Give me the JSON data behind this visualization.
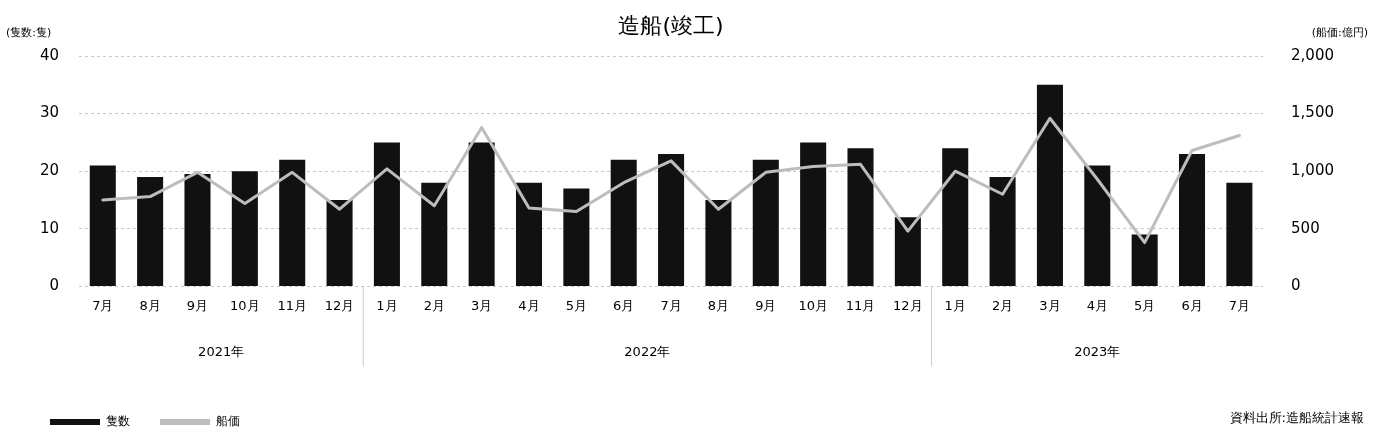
{
  "chart_data": {
    "type": "bar",
    "title": "造船(竣工)",
    "ylabel": "(隻数:隻)",
    "y2label": "(船価:億円)",
    "categories": [
      "7月",
      "8月",
      "9月",
      "10月",
      "11月",
      "12月",
      "1月",
      "2月",
      "3月",
      "4月",
      "5月",
      "6月",
      "7月",
      "8月",
      "9月",
      "10月",
      "11月",
      "12月",
      "1月",
      "2月",
      "3月",
      "4月",
      "5月",
      "6月",
      "7月"
    ],
    "series": [
      {
        "name": "隻数",
        "color": "#111111",
        "values": [
          21,
          19,
          19.5,
          20,
          22,
          15,
          25,
          18,
          25,
          18,
          17,
          22,
          23,
          15,
          22,
          25,
          24,
          12,
          24,
          19,
          35,
          21,
          9,
          23,
          18
        ]
      },
      {
        "name": "船価",
        "type": "line",
        "axis": "y2",
        "color": "#bdbdbd",
        "values": [
          750,
          780,
          990,
          720,
          990,
          670,
          1020,
          700,
          1380,
          680,
          650,
          900,
          1090,
          670,
          990,
          1040,
          1060,
          480,
          1000,
          800,
          1460,
          930,
          380,
          1180,
          1310
        ]
      }
    ],
    "ylim": [
      0,
      40
    ],
    "yticks": [
      0,
      10,
      20,
      30,
      40
    ],
    "y2lim": [
      0,
      2000
    ],
    "y2ticks": [
      {
        "value": 0,
        "label": "0"
      },
      {
        "value": 500,
        "label": "500"
      },
      {
        "value": 1000,
        "label": "1,000"
      },
      {
        "value": 1500,
        "label": "1,500"
      },
      {
        "value": 2000,
        "label": "2,000"
      }
    ],
    "grid": "y",
    "legend": "bottom left",
    "marker": "none",
    "line_style": "solid",
    "annotations": [
      "2021年",
      "2022年",
      "2023年",
      "資料出所:造船統計速報"
    ]
  }
}
